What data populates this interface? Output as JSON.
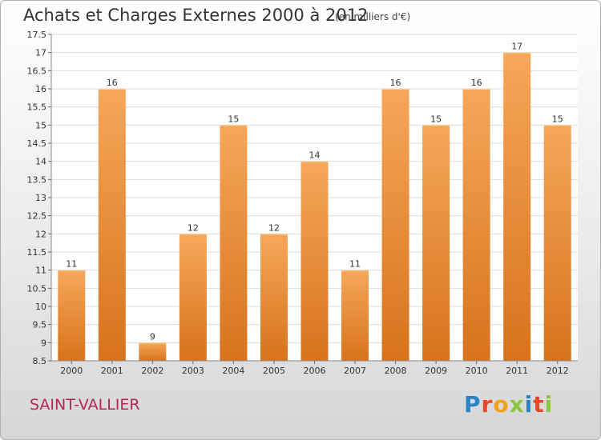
{
  "header": {
    "title": "Achats et Charges Externes 2000 à 2012",
    "subtitle": "(en milliers d'€)"
  },
  "footer": {
    "place": "SAINT-VALLIER",
    "logo_letters": [
      "P",
      "r",
      "o",
      "x",
      "i",
      "t",
      "i"
    ],
    "logo_colors": [
      "#2a83c6",
      "#e8482a",
      "#f3a21a",
      "#8cc63f",
      "#2a83c6",
      "#e8482a",
      "#8cc63f"
    ]
  },
  "chart_data": {
    "type": "bar",
    "categories": [
      "2000",
      "2001",
      "2002",
      "2003",
      "2004",
      "2005",
      "2006",
      "2007",
      "2008",
      "2009",
      "2010",
      "2011",
      "2012"
    ],
    "values": [
      11,
      16,
      9,
      12,
      15,
      12,
      14,
      11,
      16,
      15,
      16,
      17,
      15
    ],
    "data_labels": [
      "11",
      "16",
      "9",
      "12",
      "15",
      "12",
      "14",
      "11",
      "16",
      "15",
      "16",
      "17",
      "15"
    ],
    "ylim": [
      8.5,
      17.5
    ],
    "yticks": [
      8.5,
      9,
      9.5,
      10,
      10.5,
      11,
      11.5,
      12,
      12.5,
      13,
      13.5,
      14,
      14.5,
      15,
      15.5,
      16,
      16.5,
      17,
      17.5
    ],
    "ytick_labels": [
      "8.5",
      "9",
      "9.5",
      "10",
      "10.5",
      "11",
      "11.5",
      "12",
      "12.5",
      "13",
      "13.5",
      "14",
      "14.5",
      "15",
      "15.5",
      "16",
      "16.5",
      "17",
      "17.5"
    ],
    "grid": true,
    "bar_color_light": "#f6a75a",
    "bar_color_dark": "#d7731c",
    "grid_color": "#dcdcdc"
  }
}
